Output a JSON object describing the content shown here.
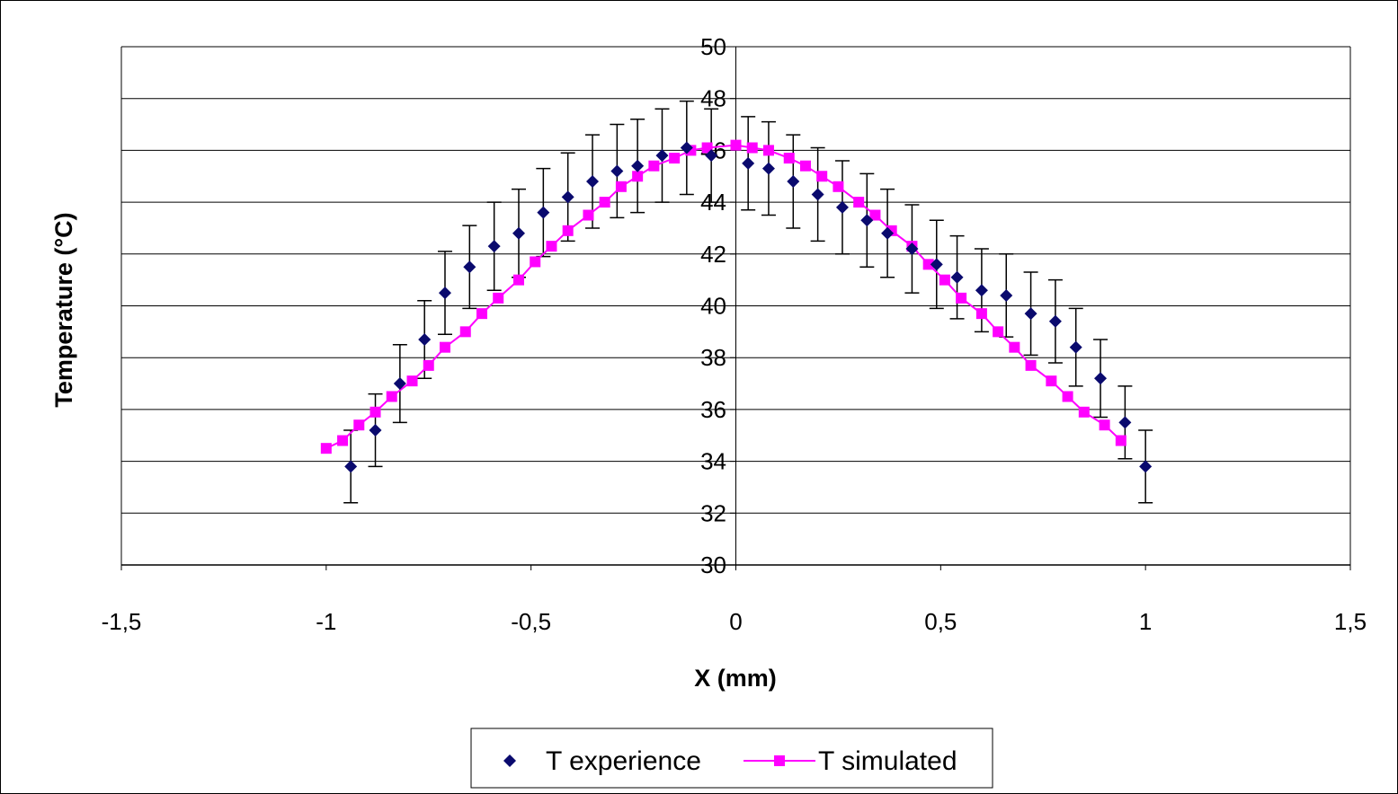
{
  "chart_data": {
    "type": "scatter",
    "xlabel": "X (mm)",
    "ylabel": "Temperature (°C)",
    "xlim": [
      -1.5,
      1.5
    ],
    "ylim": [
      30,
      50
    ],
    "x_ticks": [
      "-1,5",
      "-1",
      "-0,5",
      "0",
      "0,5",
      "1",
      "1,5"
    ],
    "y_ticks": [
      "30",
      "32",
      "34",
      "36",
      "38",
      "40",
      "42",
      "44",
      "46",
      "48",
      "50"
    ],
    "grid": "horizontal",
    "legend_position": "bottom",
    "colors": {
      "experience": "#0a0a6e",
      "simulated": "#ff00ff",
      "grid": "#000000"
    },
    "series": [
      {
        "name": "T experience",
        "marker": "diamond",
        "line": false,
        "x": [
          -0.94,
          -0.88,
          -0.82,
          -0.76,
          -0.71,
          -0.65,
          -0.59,
          -0.53,
          -0.47,
          -0.41,
          -0.35,
          -0.29,
          -0.24,
          -0.18,
          -0.12,
          -0.06,
          0.03,
          0.08,
          0.14,
          0.2,
          0.26,
          0.32,
          0.37,
          0.43,
          0.49,
          0.54,
          0.6,
          0.66,
          0.72,
          0.78,
          0.83,
          0.89,
          0.95,
          1.0
        ],
        "y": [
          33.8,
          35.2,
          37.0,
          38.7,
          40.5,
          41.5,
          42.3,
          42.8,
          43.6,
          44.2,
          44.8,
          45.2,
          45.4,
          45.8,
          46.1,
          45.8,
          45.5,
          45.3,
          44.8,
          44.3,
          43.8,
          43.3,
          42.8,
          42.2,
          41.6,
          41.1,
          40.6,
          40.4,
          39.7,
          39.4,
          38.4,
          37.2,
          35.5,
          33.8
        ],
        "error": [
          1.4,
          1.4,
          1.5,
          1.5,
          1.6,
          1.6,
          1.7,
          1.7,
          1.7,
          1.7,
          1.8,
          1.8,
          1.8,
          1.8,
          1.8,
          1.8,
          1.8,
          1.8,
          1.8,
          1.8,
          1.8,
          1.8,
          1.7,
          1.7,
          1.7,
          1.6,
          1.6,
          1.6,
          1.6,
          1.6,
          1.5,
          1.5,
          1.4,
          1.4
        ]
      },
      {
        "name": "T simulated",
        "marker": "square",
        "line": true,
        "x": [
          -1.0,
          -0.96,
          -0.92,
          -0.88,
          -0.84,
          -0.79,
          -0.75,
          -0.71,
          -0.66,
          -0.62,
          -0.58,
          -0.53,
          -0.49,
          -0.45,
          -0.41,
          -0.36,
          -0.32,
          -0.28,
          -0.24,
          -0.2,
          -0.15,
          -0.11,
          -0.07,
          0.0,
          0.04,
          0.08,
          0.13,
          0.17,
          0.21,
          0.25,
          0.3,
          0.34,
          0.38,
          0.43,
          0.47,
          0.51,
          0.55,
          0.6,
          0.64,
          0.68,
          0.72,
          0.77,
          0.81,
          0.85,
          0.9,
          0.94
        ],
        "y": [
          34.5,
          34.8,
          35.4,
          35.9,
          36.5,
          37.1,
          37.7,
          38.4,
          39.0,
          39.7,
          40.3,
          41.0,
          41.7,
          42.3,
          42.9,
          43.5,
          44.0,
          44.6,
          45.0,
          45.4,
          45.7,
          46.0,
          46.1,
          46.2,
          46.1,
          46.0,
          45.7,
          45.4,
          45.0,
          44.6,
          44.0,
          43.5,
          42.9,
          42.3,
          41.6,
          41.0,
          40.3,
          39.7,
          39.0,
          38.4,
          37.7,
          37.1,
          36.5,
          35.9,
          35.4,
          34.8
        ]
      }
    ]
  }
}
